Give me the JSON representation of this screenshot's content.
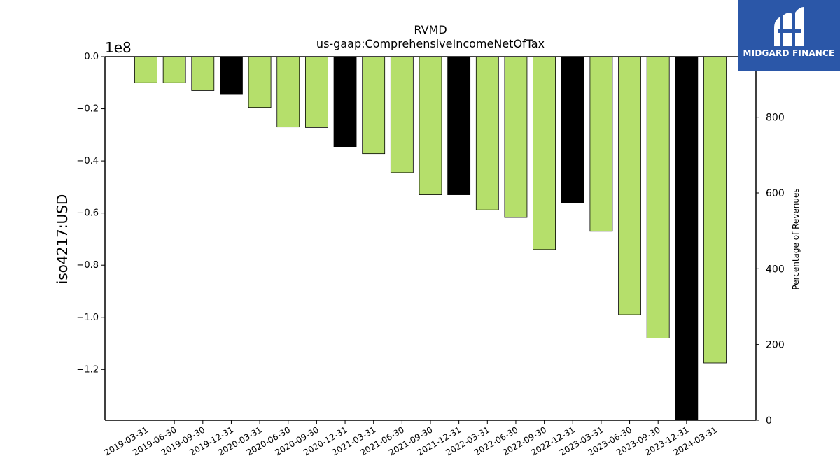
{
  "chart_data": {
    "type": "bar",
    "title": "RVMD",
    "subtitle": "us-gaap:ComprehensiveIncomeNetOfTax",
    "ylabel": "iso4217:USD",
    "ylabel_right": "Percentage of Revenues",
    "offset_text": "1e8",
    "ylim": [
      -1.395,
      0
    ],
    "ylim_right": [
      0,
      960
    ],
    "yticks": [
      0.0,
      -0.2,
      -0.4,
      -0.6,
      -0.8,
      -1.0,
      -1.2
    ],
    "yticks_right": [
      0,
      200,
      400,
      600,
      800
    ],
    "categories": [
      "2019-03-31",
      "2019-06-30",
      "2019-09-30",
      "2019-12-31",
      "2020-03-31",
      "2020-06-30",
      "2020-09-30",
      "2020-12-31",
      "2021-03-31",
      "2021-06-30",
      "2021-09-30",
      "2021-12-31",
      "2022-03-31",
      "2022-06-30",
      "2022-09-30",
      "2022-12-31",
      "2023-03-31",
      "2023-06-30",
      "2023-09-30",
      "2023-12-31",
      "2024-03-31"
    ],
    "values": [
      -0.1,
      -0.1,
      -0.13,
      -0.145,
      -0.195,
      -0.27,
      -0.272,
      -0.345,
      -0.372,
      -0.445,
      -0.53,
      -0.53,
      -0.588,
      -0.617,
      -0.74,
      -0.56,
      -0.67,
      -0.99,
      -1.08,
      -1.4,
      -1.175
    ],
    "colors": [
      "#b5df6b",
      "#b5df6b",
      "#b5df6b",
      "#000000",
      "#b5df6b",
      "#b5df6b",
      "#b5df6b",
      "#000000",
      "#b5df6b",
      "#b5df6b",
      "#b5df6b",
      "#000000",
      "#b5df6b",
      "#b5df6b",
      "#b5df6b",
      "#000000",
      "#b5df6b",
      "#b5df6b",
      "#b5df6b",
      "#000000",
      "#b5df6b"
    ],
    "grid": false
  },
  "logo": {
    "text": "MIDGARD FINANCE",
    "background": "#2b57a8"
  }
}
